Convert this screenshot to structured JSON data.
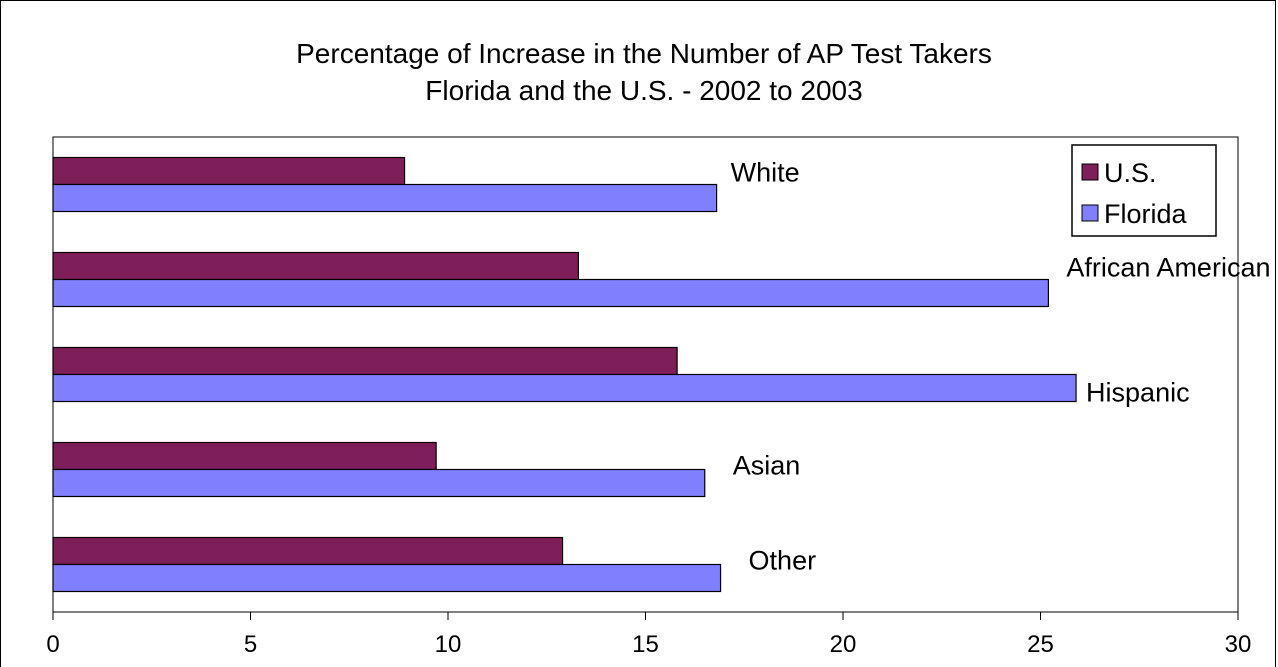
{
  "chart_data": {
    "type": "bar",
    "orientation": "horizontal",
    "title": [
      "Percentage of Increase in the Number of AP Test Takers",
      "Florida and the U.S.  - 2002 to 2003"
    ],
    "categories": [
      "White",
      "African American",
      "Hispanic",
      "Asian",
      "Other"
    ],
    "series": [
      {
        "name": "U.S.",
        "color": "#7F1F5A",
        "values": [
          8.9,
          13.3,
          15.8,
          9.7,
          12.9
        ]
      },
      {
        "name": "Florida",
        "color": "#8080FF",
        "values": [
          16.8,
          25.2,
          25.9,
          16.5,
          16.9
        ]
      }
    ],
    "xlim": [
      0,
      30
    ],
    "xticks": [
      0,
      5,
      10,
      15,
      20,
      25,
      30
    ],
    "grid": false,
    "legend": "top-right"
  }
}
